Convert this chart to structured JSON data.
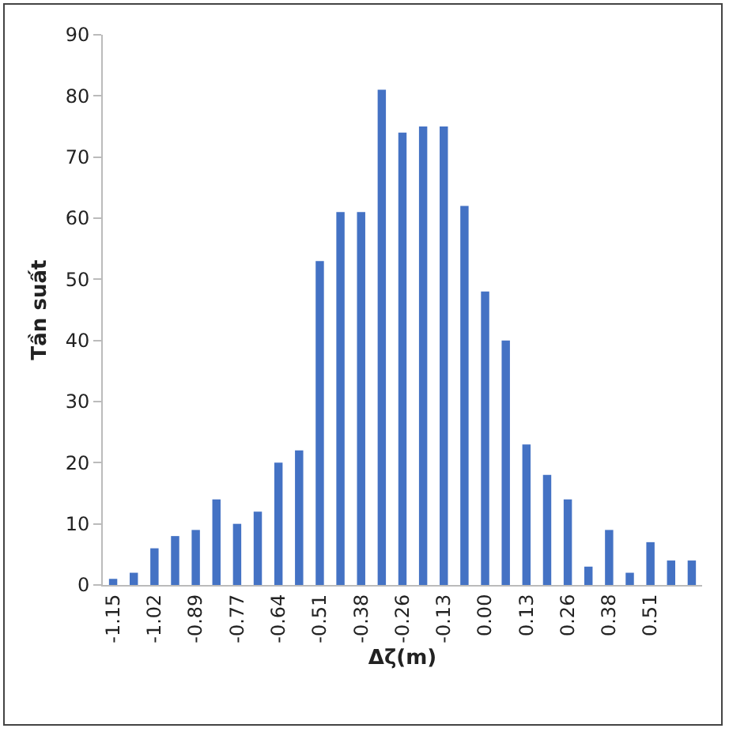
{
  "chart_data": {
    "type": "bar",
    "xlabel": "Δζ(m)",
    "ylabel": "Tần suất",
    "categories": [
      "-1.15",
      null,
      "-1.02",
      null,
      "-0.89",
      null,
      "-0.77",
      null,
      "-0.64",
      null,
      "-0.51",
      null,
      "-0.38",
      null,
      "-0.26",
      null,
      "-0.13",
      null,
      "0.00",
      null,
      "0.13",
      null,
      "0.26",
      null,
      "0.38",
      null,
      "0.51",
      null,
      null
    ],
    "values": [
      1,
      2,
      6,
      8,
      9,
      14,
      10,
      12,
      20,
      22,
      53,
      61,
      61,
      81,
      74,
      75,
      75,
      62,
      48,
      40,
      23,
      18,
      14,
      3,
      9,
      2,
      7,
      4,
      4
    ],
    "color": "#4472c4",
    "ylim": [
      0,
      90
    ],
    "yticks": [
      0,
      10,
      20,
      30,
      40,
      50,
      60,
      70,
      80,
      90
    ],
    "grid": false
  }
}
